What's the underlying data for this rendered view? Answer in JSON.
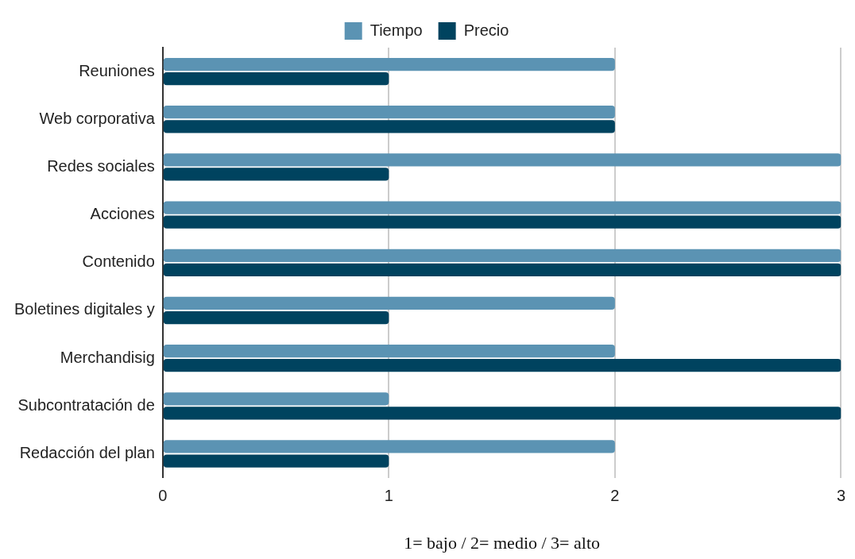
{
  "chart_data": {
    "type": "bar",
    "orientation": "horizontal",
    "xlabel": "1= bajo / 2= medio / 3= alto",
    "categories": [
      "Reuniones",
      "Web corporativa",
      "Redes sociales",
      "Acciones",
      "Contenido",
      "Boletines digitales y",
      "Merchandisig",
      "Subcontratación de",
      "Redacción del plan"
    ],
    "series": [
      {
        "name": "Tiempo",
        "color": "#5b93b3",
        "values": [
          2,
          2,
          3,
          3,
          3,
          2,
          2,
          1,
          2
        ]
      },
      {
        "name": "Precio",
        "color": "#00435f",
        "values": [
          1,
          2,
          1,
          3,
          3,
          1,
          3,
          3,
          1
        ]
      }
    ],
    "xlim": [
      0,
      3
    ],
    "xticks": [
      0,
      1,
      2,
      3
    ],
    "grid": "x",
    "legend": "top"
  }
}
